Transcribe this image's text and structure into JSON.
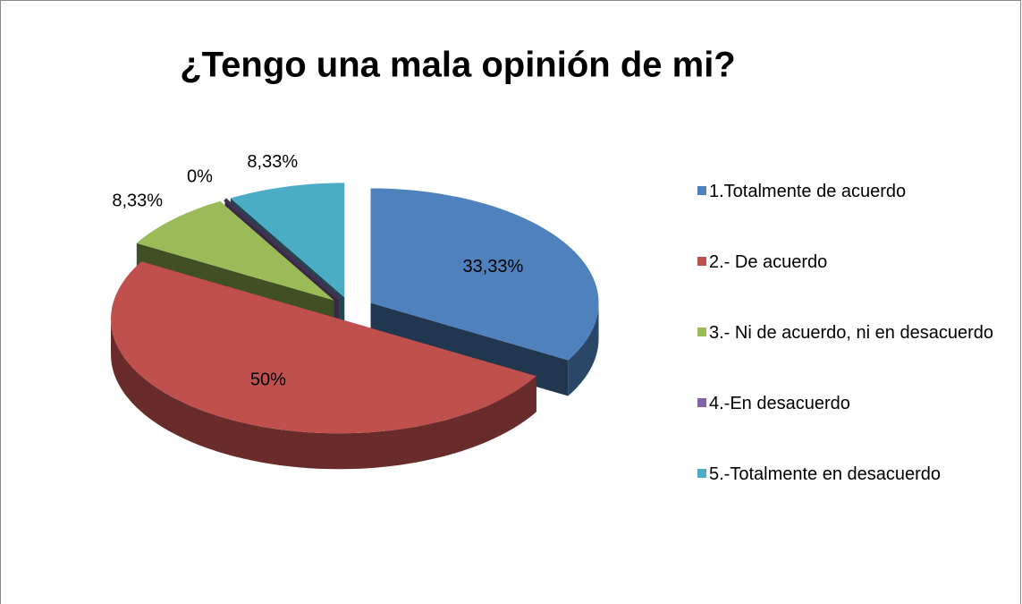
{
  "chart_data": {
    "type": "pie3d",
    "title": "¿Tengo una mala opinión de mi?",
    "categories": [
      "1.Totalmente de acuerdo",
      "2.- De acuerdo",
      "3.- Ni de acuerdo, ni en desacuerdo",
      "4.-En desacuerdo",
      "5.-Totalmente en desacuerdo"
    ],
    "values": [
      33.33,
      50,
      8.33,
      0,
      8.33
    ],
    "value_labels": [
      "33,33%",
      "50%",
      "8,33%",
      "0%",
      "8,33%"
    ],
    "colors": [
      "#4f81bd",
      "#c0504d",
      "#9bbb59",
      "#8064a2",
      "#4bacc6"
    ],
    "legend": "right"
  }
}
